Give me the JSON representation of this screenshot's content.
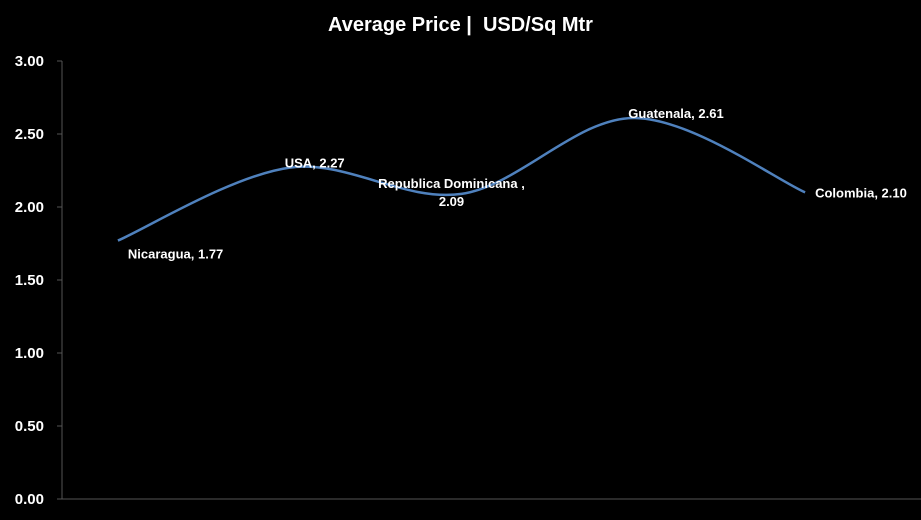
{
  "chart_data": {
    "type": "line",
    "title": "Average Price |  USD/Sq Mtr",
    "categories": [
      "Nicaragua",
      "USA",
      "Republica Dominicana ",
      "Guatenala",
      "Colombia"
    ],
    "series": [
      {
        "values": [
          1.77,
          2.27,
          2.09,
          2.61,
          2.1
        ]
      }
    ],
    "data_labels": [
      [
        "Nicaragua, 1.77"
      ],
      [
        "USA, 2.27"
      ],
      [
        "Republica Dominicana ,",
        "2.09"
      ],
      [
        "Guatenala, 2.61"
      ],
      [
        "Colombia, 2.10"
      ]
    ],
    "y_ticks": [
      "0.00",
      "0.50",
      "1.00",
      "1.50",
      "2.00",
      "2.50",
      "3.00"
    ],
    "ylim": [
      0,
      3
    ],
    "xlabel": "",
    "ylabel": "",
    "grid": false,
    "legend": "none",
    "smooth": true,
    "line_color": "#4F81BD",
    "background": "#000000",
    "text_color": "#FFFFFF"
  }
}
